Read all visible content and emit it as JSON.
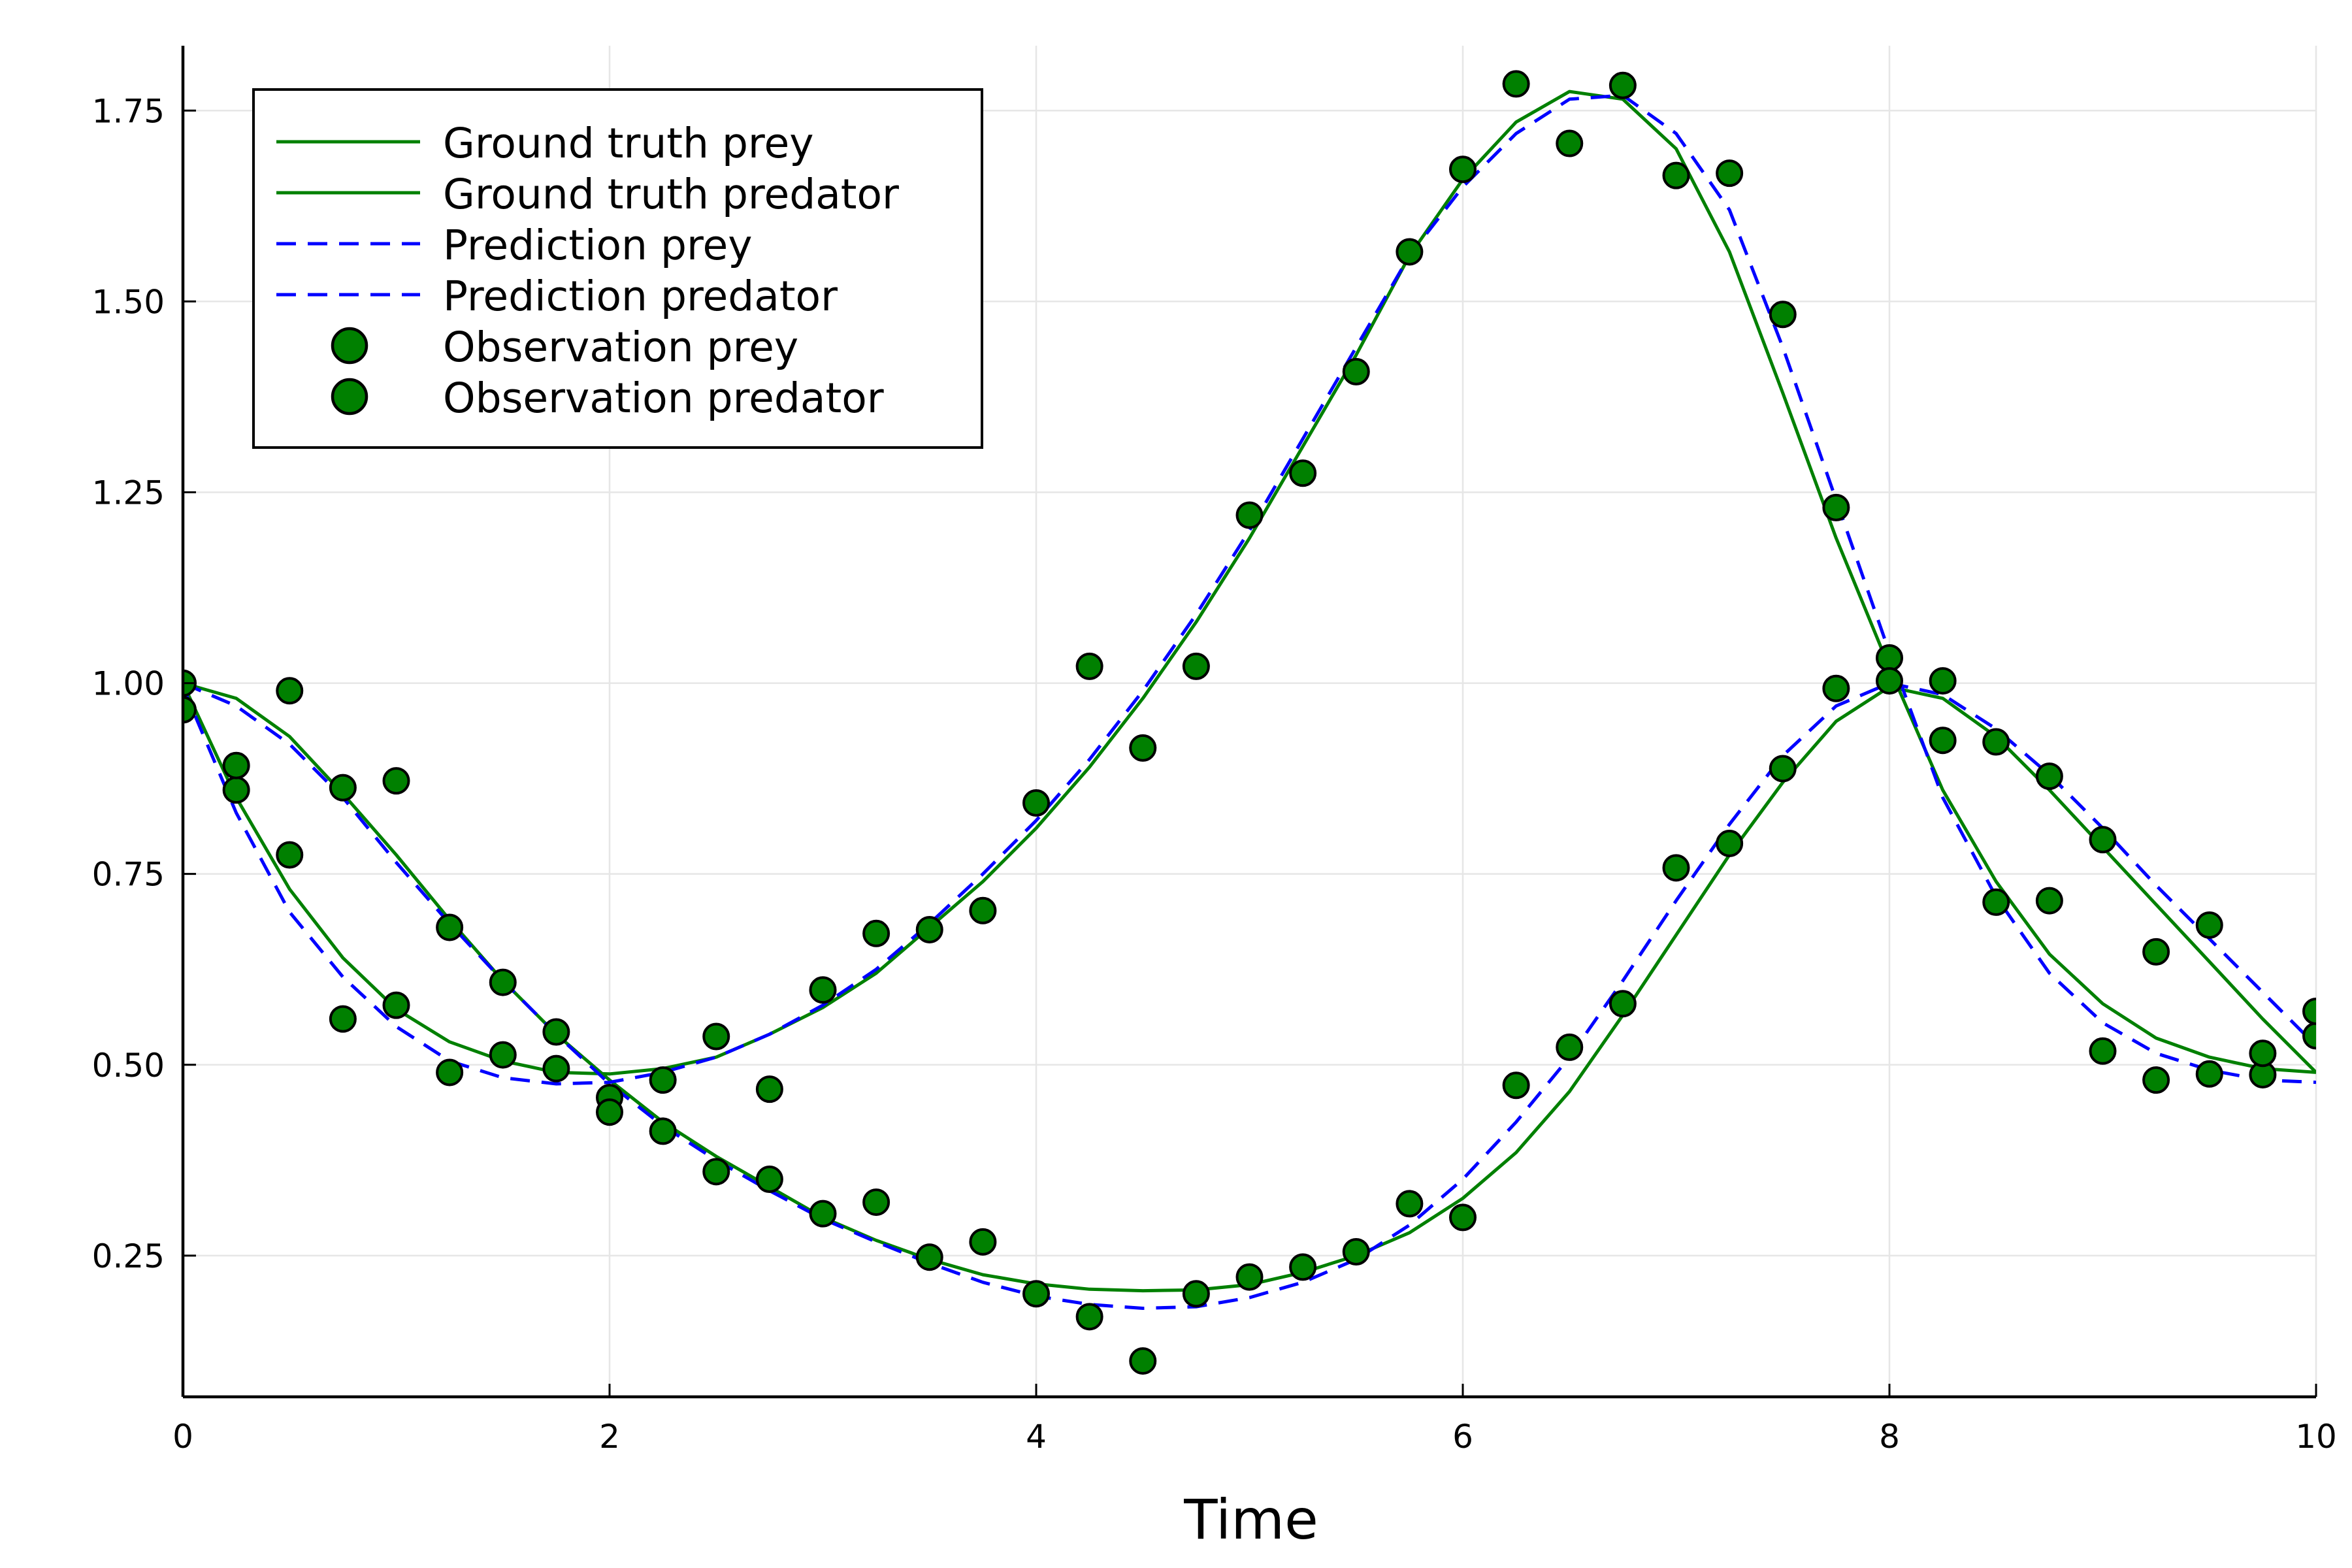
{
  "chart_data": {
    "type": "line",
    "title": "",
    "xlabel": "Time",
    "ylabel": "",
    "xlim": [
      0,
      10
    ],
    "ylim": [
      0.065,
      1.835
    ],
    "x_ticks": [
      0,
      2,
      4,
      6,
      8,
      10
    ],
    "x_tick_labels": [
      "0",
      "2",
      "4",
      "6",
      "8",
      "10"
    ],
    "y_ticks": [
      0.25,
      0.5,
      0.75,
      1.0,
      1.25,
      1.5,
      1.75
    ],
    "y_tick_labels": [
      "0.25",
      "0.50",
      "0.75",
      "1.00",
      "1.25",
      "1.50",
      "1.75"
    ],
    "grid": true,
    "legend_position": "top-left",
    "colors": {
      "ground_truth": "#008000",
      "prediction": "#0000ff",
      "observation": "#008000"
    },
    "series": [
      {
        "name": "Ground truth prey",
        "kind": "line",
        "x": [
          0,
          0.25,
          0.5,
          0.75,
          1,
          1.25,
          1.5,
          1.75,
          2,
          2.25,
          2.5,
          2.75,
          3,
          3.25,
          3.5,
          3.75,
          4,
          4.25,
          4.5,
          4.75,
          5,
          5.25,
          5.5,
          5.75,
          6,
          6.25,
          6.5,
          6.75,
          7,
          7.25,
          7.5,
          7.75,
          8,
          8.25,
          8.5,
          8.75,
          9,
          9.25,
          9.5,
          9.75,
          10
        ],
        "y": [
          1.0,
          0.85,
          0.73,
          0.64,
          0.573,
          0.53,
          0.505,
          0.49,
          0.488,
          0.495,
          0.51,
          0.54,
          0.575,
          0.62,
          0.68,
          0.74,
          0.81,
          0.89,
          0.98,
          1.08,
          1.19,
          1.31,
          1.43,
          1.56,
          1.66,
          1.735,
          1.775,
          1.765,
          1.7,
          1.565,
          1.38,
          1.19,
          1.02,
          0.86,
          0.74,
          0.645,
          0.58,
          0.535,
          0.51,
          0.495,
          0.49
        ]
      },
      {
        "name": "Ground truth predator",
        "kind": "line",
        "x": [
          0,
          0.25,
          0.5,
          0.75,
          1,
          1.25,
          1.5,
          1.75,
          2,
          2.25,
          2.5,
          2.75,
          3,
          3.25,
          3.5,
          3.75,
          4,
          4.25,
          4.5,
          4.75,
          5,
          5.25,
          5.5,
          5.75,
          6,
          6.25,
          6.5,
          6.75,
          7,
          7.25,
          7.5,
          7.75,
          8,
          8.25,
          8.5,
          8.75,
          9,
          9.25,
          9.5,
          9.75,
          10
        ],
        "y": [
          1.0,
          0.98,
          0.93,
          0.855,
          0.775,
          0.69,
          0.61,
          0.54,
          0.48,
          0.425,
          0.38,
          0.34,
          0.3,
          0.27,
          0.245,
          0.225,
          0.213,
          0.206,
          0.204,
          0.205,
          0.212,
          0.228,
          0.25,
          0.28,
          0.325,
          0.385,
          0.465,
          0.565,
          0.67,
          0.775,
          0.87,
          0.95,
          0.995,
          0.98,
          0.93,
          0.86,
          0.785,
          0.71,
          0.635,
          0.56,
          0.49
        ]
      },
      {
        "name": "Prediction prey",
        "kind": "dashed-line",
        "x": [
          0,
          0.25,
          0.5,
          0.75,
          1,
          1.25,
          1.5,
          1.75,
          2,
          2.25,
          2.5,
          2.75,
          3,
          3.25,
          3.5,
          3.75,
          4,
          4.25,
          4.5,
          4.75,
          5,
          5.25,
          5.5,
          5.75,
          6,
          6.25,
          6.5,
          6.75,
          7,
          7.25,
          7.5,
          7.75,
          8,
          8.25,
          8.5,
          8.75,
          9,
          9.25,
          9.5,
          9.75,
          10
        ],
        "y": [
          0.995,
          0.83,
          0.7,
          0.615,
          0.55,
          0.505,
          0.483,
          0.475,
          0.477,
          0.49,
          0.51,
          0.54,
          0.578,
          0.625,
          0.685,
          0.75,
          0.82,
          0.9,
          0.99,
          1.09,
          1.2,
          1.32,
          1.44,
          1.56,
          1.65,
          1.72,
          1.765,
          1.77,
          1.72,
          1.62,
          1.44,
          1.24,
          1.04,
          0.85,
          0.72,
          0.62,
          0.555,
          0.515,
          0.493,
          0.48,
          0.477
        ]
      },
      {
        "name": "Prediction predator",
        "kind": "dashed-line",
        "x": [
          0,
          0.25,
          0.5,
          0.75,
          1,
          1.25,
          1.5,
          1.75,
          2,
          2.25,
          2.5,
          2.75,
          3,
          3.25,
          3.5,
          3.75,
          4,
          4.25,
          4.5,
          4.75,
          5,
          5.25,
          5.5,
          5.75,
          6,
          6.25,
          6.5,
          6.75,
          7,
          7.25,
          7.5,
          7.75,
          8,
          8.25,
          8.5,
          8.75,
          9,
          9.25,
          9.5,
          9.75,
          10
        ],
        "y": [
          1.0,
          0.97,
          0.92,
          0.85,
          0.765,
          0.685,
          0.61,
          0.54,
          0.475,
          0.42,
          0.375,
          0.335,
          0.298,
          0.268,
          0.24,
          0.215,
          0.197,
          0.186,
          0.181,
          0.183,
          0.195,
          0.215,
          0.245,
          0.29,
          0.35,
          0.425,
          0.51,
          0.61,
          0.715,
          0.815,
          0.905,
          0.97,
          1.0,
          0.985,
          0.94,
          0.88,
          0.81,
          0.735,
          0.665,
          0.595,
          0.525
        ]
      },
      {
        "name": "Observation prey",
        "kind": "scatter",
        "x": [
          0,
          0.25,
          0.5,
          0.75,
          1,
          1.25,
          1.5,
          1.75,
          2,
          2.25,
          2.5,
          2.75,
          3,
          3.25,
          3.5,
          3.75,
          4,
          4.25,
          4.5,
          4.75,
          5,
          5.25,
          5.5,
          5.75,
          6,
          6.25,
          6.5,
          6.75,
          7,
          7.25,
          7.5,
          7.75,
          8,
          8.25,
          8.5,
          8.75,
          9,
          9.25,
          9.5,
          9.75,
          10
        ],
        "y": [
          0.965,
          0.86,
          0.775,
          0.56,
          0.578,
          0.49,
          0.513,
          0.495,
          0.457,
          0.48,
          0.537,
          0.468,
          0.598,
          0.672,
          0.677,
          0.702,
          0.843,
          1.022,
          0.915,
          1.022,
          1.22,
          1.275,
          1.408,
          1.565,
          1.673,
          1.785,
          1.707,
          1.783,
          1.665,
          1.668,
          1.483,
          1.23,
          1.033,
          0.925,
          0.713,
          0.715,
          0.518,
          0.48,
          0.488,
          0.487,
          0.538
        ]
      },
      {
        "name": "Observation predator",
        "kind": "scatter",
        "x": [
          0,
          0.25,
          0.5,
          0.75,
          1,
          1.25,
          1.5,
          1.75,
          2,
          2.25,
          2.5,
          2.75,
          3,
          3.25,
          3.5,
          3.75,
          4,
          4.25,
          4.5,
          4.75,
          5,
          5.25,
          5.5,
          5.75,
          6,
          6.25,
          6.5,
          6.75,
          7,
          7.25,
          7.5,
          7.75,
          8,
          8.25,
          8.5,
          8.75,
          9,
          9.25,
          9.5,
          9.75,
          10
        ],
        "y": [
          1.0,
          0.892,
          0.99,
          0.863,
          0.872,
          0.68,
          0.608,
          0.543,
          0.438,
          0.413,
          0.36,
          0.35,
          0.305,
          0.32,
          0.248,
          0.268,
          0.2,
          0.17,
          0.112,
          0.2,
          0.222,
          0.235,
          0.255,
          0.318,
          0.3,
          0.473,
          0.523,
          0.58,
          0.758,
          0.79,
          0.888,
          0.993,
          1.003,
          1.003,
          0.923,
          0.878,
          0.795,
          0.648,
          0.683,
          0.515,
          0.57
        ]
      }
    ]
  }
}
